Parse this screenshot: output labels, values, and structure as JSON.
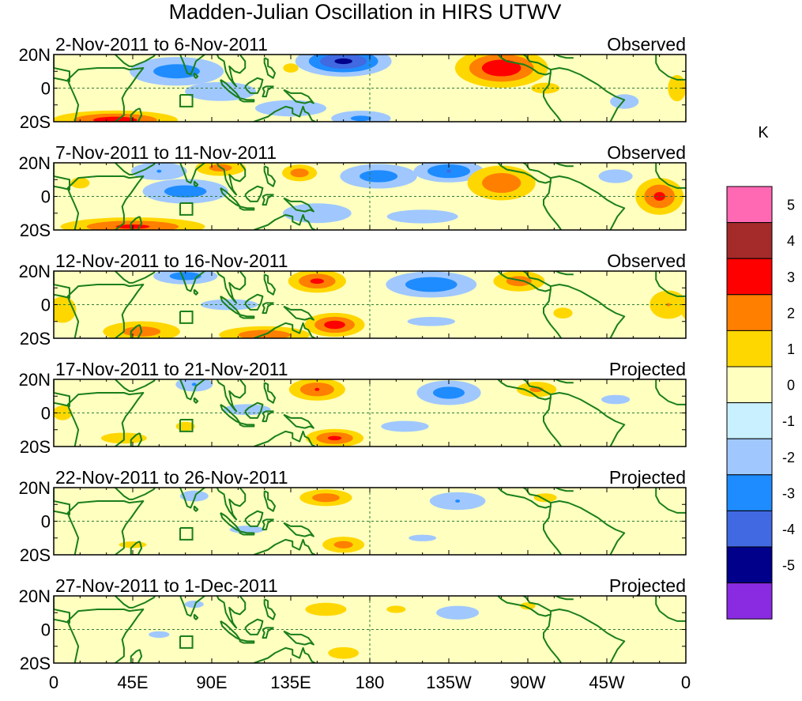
{
  "chart_data": {
    "type": "heatmap",
    "title": "Madden-Julian Oscillation in HIRS UTWV",
    "x_ticks": [
      "0",
      "45E",
      "90E",
      "135E",
      "180",
      "135W",
      "90W",
      "45W",
      "0"
    ],
    "x_tick_lon": [
      0,
      45,
      90,
      135,
      180,
      225,
      270,
      315,
      360
    ],
    "y_ticks": [
      "20N",
      "0",
      "20S"
    ],
    "y_tick_lat": [
      20,
      0,
      -20
    ],
    "xlim": [
      0,
      360
    ],
    "ylim": [
      -20,
      20
    ],
    "colorbar": {
      "unit": "K",
      "labels": [
        "5",
        "4",
        "3",
        "2",
        "1",
        "0",
        "-1",
        "-2",
        "-3",
        "-4",
        "-5"
      ],
      "colors": [
        "#ff69b4",
        "#a52a2a",
        "#ff0000",
        "#ff7f00",
        "#ffd700",
        "#ffffc0",
        "#c8f0ff",
        "#a0c8ff",
        "#1e8cff",
        "#4169e1",
        "#00008b",
        "#8a2be2"
      ]
    },
    "panels": [
      {
        "label": "2-Nov-2011 to 6-Nov-2011",
        "status": "Observed",
        "anomalies": [
          {
            "lon": 70,
            "lat": 10,
            "value": -2.5,
            "sx": 22,
            "sy": 7
          },
          {
            "lon": 95,
            "lat": -2,
            "value": -1.5,
            "sx": 25,
            "sy": 7
          },
          {
            "lon": 165,
            "lat": 16,
            "value": -4.2,
            "sx": 18,
            "sy": 6
          },
          {
            "lon": 135,
            "lat": -12,
            "value": -1.5,
            "sx": 25,
            "sy": 6
          },
          {
            "lon": 175,
            "lat": -18,
            "value": -2.2,
            "sx": 15,
            "sy": 4
          },
          {
            "lon": 255,
            "lat": 12,
            "value": 3.8,
            "sx": 18,
            "sy": 8
          },
          {
            "lon": 280,
            "lat": 0,
            "value": 1.2,
            "sx": 15,
            "sy": 6
          },
          {
            "lon": 35,
            "lat": -19,
            "value": 3.5,
            "sx": 25,
            "sy": 4
          },
          {
            "lon": 325,
            "lat": -8,
            "value": -1.2,
            "sx": 15,
            "sy": 8
          },
          {
            "lon": 355,
            "lat": 0,
            "value": 1.3,
            "sx": 8,
            "sy": 12
          },
          {
            "lon": 135,
            "lat": 12,
            "value": 1.2,
            "sx": 8,
            "sy": 5
          }
        ]
      },
      {
        "label": "7-Nov-2011 to 11-Nov-2011",
        "status": "Observed",
        "anomalies": [
          {
            "lon": 60,
            "lat": 15,
            "value": -2.0,
            "sx": 15,
            "sy": 5
          },
          {
            "lon": 95,
            "lat": 17,
            "value": 2.4,
            "sx": 12,
            "sy": 4
          },
          {
            "lon": 140,
            "lat": 14,
            "value": 2.6,
            "sx": 8,
            "sy": 4
          },
          {
            "lon": 185,
            "lat": 12,
            "value": -2.5,
            "sx": 18,
            "sy": 6
          },
          {
            "lon": 225,
            "lat": 15,
            "value": -3.0,
            "sx": 15,
            "sy": 5
          },
          {
            "lon": 255,
            "lat": 8,
            "value": 2.8,
            "sx": 15,
            "sy": 8
          },
          {
            "lon": 75,
            "lat": 3,
            "value": -2.5,
            "sx": 20,
            "sy": 6
          },
          {
            "lon": 45,
            "lat": -18,
            "value": 3.2,
            "sx": 30,
            "sy": 4
          },
          {
            "lon": 150,
            "lat": -10,
            "value": -1.8,
            "sx": 20,
            "sy": 6
          },
          {
            "lon": 210,
            "lat": -12,
            "value": -1.5,
            "sx": 25,
            "sy": 5
          },
          {
            "lon": 345,
            "lat": 0,
            "value": 3.2,
            "sx": 10,
            "sy": 8
          },
          {
            "lon": 15,
            "lat": 8,
            "value": 1.2,
            "sx": 10,
            "sy": 6
          },
          {
            "lon": 320,
            "lat": 12,
            "value": -1.5,
            "sx": 12,
            "sy": 5
          }
        ]
      },
      {
        "label": "12-Nov-2011 to 16-Nov-2011",
        "status": "Observed",
        "anomalies": [
          {
            "lon": 75,
            "lat": 17,
            "value": -2.5,
            "sx": 15,
            "sy": 4
          },
          {
            "lon": 150,
            "lat": 14,
            "value": 3.2,
            "sx": 12,
            "sy": 5
          },
          {
            "lon": 215,
            "lat": 12,
            "value": -2.8,
            "sx": 20,
            "sy": 6
          },
          {
            "lon": 265,
            "lat": 14,
            "value": 2.5,
            "sx": 12,
            "sy": 5
          },
          {
            "lon": 160,
            "lat": -12,
            "value": 3.5,
            "sx": 12,
            "sy": 5
          },
          {
            "lon": 120,
            "lat": -18,
            "value": 2.8,
            "sx": 20,
            "sy": 4
          },
          {
            "lon": 50,
            "lat": -16,
            "value": 2.5,
            "sx": 18,
            "sy": 5
          },
          {
            "lon": 100,
            "lat": 0,
            "value": -1.2,
            "sx": 30,
            "sy": 6
          },
          {
            "lon": 215,
            "lat": -10,
            "value": -1.2,
            "sx": 25,
            "sy": 5
          },
          {
            "lon": 350,
            "lat": 0,
            "value": 2.0,
            "sx": 10,
            "sy": 8
          },
          {
            "lon": 5,
            "lat": -3,
            "value": 1.8,
            "sx": 8,
            "sy": 8
          },
          {
            "lon": 290,
            "lat": -5,
            "value": 1.2,
            "sx": 10,
            "sy": 6
          }
        ]
      },
      {
        "label": "17-Nov-2011 to 21-Nov-2011",
        "status": "Projected",
        "anomalies": [
          {
            "lon": 150,
            "lat": 14,
            "value": 3.0,
            "sx": 12,
            "sy": 5
          },
          {
            "lon": 225,
            "lat": 12,
            "value": -2.5,
            "sx": 15,
            "sy": 6
          },
          {
            "lon": 275,
            "lat": 14,
            "value": 2.2,
            "sx": 10,
            "sy": 4
          },
          {
            "lon": 160,
            "lat": -15,
            "value": 3.2,
            "sx": 12,
            "sy": 4
          },
          {
            "lon": 80,
            "lat": 17,
            "value": -2.0,
            "sx": 10,
            "sy": 4
          },
          {
            "lon": 40,
            "lat": -15,
            "value": 1.3,
            "sx": 20,
            "sy": 5
          },
          {
            "lon": 75,
            "lat": -8,
            "value": 1.2,
            "sx": 10,
            "sy": 5
          },
          {
            "lon": 110,
            "lat": 2,
            "value": -1.2,
            "sx": 25,
            "sy": 6
          },
          {
            "lon": 200,
            "lat": -8,
            "value": -1.2,
            "sx": 25,
            "sy": 6
          },
          {
            "lon": 320,
            "lat": 8,
            "value": -1.2,
            "sx": 15,
            "sy": 5
          },
          {
            "lon": 5,
            "lat": 0,
            "value": 1.2,
            "sx": 10,
            "sy": 8
          }
        ]
      },
      {
        "label": "22-Nov-2011 to 26-Nov-2011",
        "status": "Projected",
        "anomalies": [
          {
            "lon": 155,
            "lat": 14,
            "value": 2.6,
            "sx": 12,
            "sy": 4
          },
          {
            "lon": 230,
            "lat": 12,
            "value": -2.0,
            "sx": 15,
            "sy": 5
          },
          {
            "lon": 165,
            "lat": -14,
            "value": 2.4,
            "sx": 10,
            "sy": 4
          },
          {
            "lon": 80,
            "lat": 15,
            "value": -1.5,
            "sx": 10,
            "sy": 4
          },
          {
            "lon": 280,
            "lat": 14,
            "value": 1.3,
            "sx": 10,
            "sy": 4
          },
          {
            "lon": 110,
            "lat": -5,
            "value": -1.1,
            "sx": 25,
            "sy": 6
          },
          {
            "lon": 45,
            "lat": -14,
            "value": 1.1,
            "sx": 20,
            "sy": 5
          },
          {
            "lon": 210,
            "lat": -10,
            "value": -1.1,
            "sx": 20,
            "sy": 5
          }
        ]
      },
      {
        "label": "27-Nov-2011 to 1-Dec-2011",
        "status": "Projected",
        "anomalies": [
          {
            "lon": 155,
            "lat": 12,
            "value": 1.8,
            "sx": 12,
            "sy": 4
          },
          {
            "lon": 230,
            "lat": 10,
            "value": -1.5,
            "sx": 15,
            "sy": 5
          },
          {
            "lon": 195,
            "lat": 12,
            "value": 1.2,
            "sx": 10,
            "sy": 4
          },
          {
            "lon": 165,
            "lat": -14,
            "value": 1.6,
            "sx": 10,
            "sy": 4
          },
          {
            "lon": 80,
            "lat": 15,
            "value": -1.2,
            "sx": 10,
            "sy": 4
          },
          {
            "lon": 60,
            "lat": -3,
            "value": -1.1,
            "sx": 15,
            "sy": 5
          },
          {
            "lon": 270,
            "lat": 14,
            "value": 1.2,
            "sx": 8,
            "sy": 4
          }
        ]
      }
    ]
  }
}
